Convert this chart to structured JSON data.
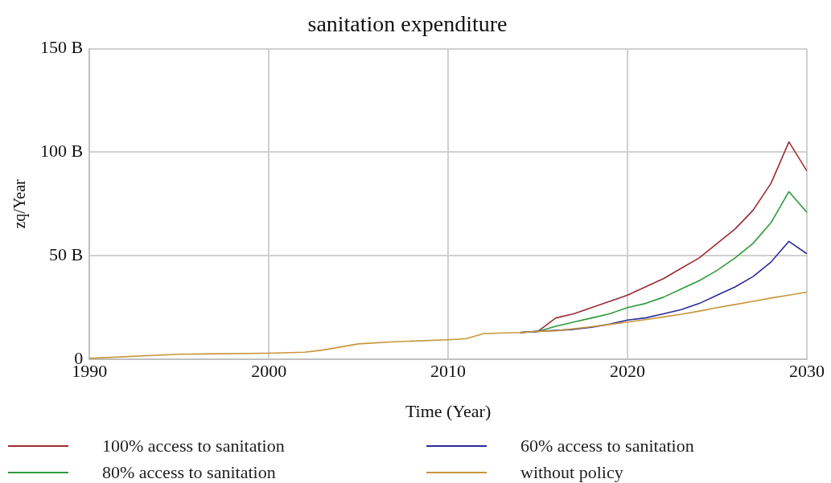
{
  "chart_data": {
    "type": "line",
    "title": "sanitation expenditure",
    "xlabel": "Time (Year)",
    "ylabel": "zq/Year",
    "x": [
      1990,
      1995,
      2000,
      2002,
      2003,
      2005,
      2007,
      2010,
      2011,
      2012,
      2014,
      2015,
      2016,
      2017,
      2018,
      2019,
      2020,
      2021,
      2022,
      2023,
      2024,
      2025,
      2026,
      2027,
      2028,
      2029,
      2030
    ],
    "series": [
      {
        "name": "100% access to sanitation",
        "color": "#9b2d30",
        "values": [
          null,
          null,
          null,
          null,
          null,
          null,
          null,
          null,
          null,
          null,
          13,
          13.5,
          20,
          22,
          25,
          28,
          31,
          35,
          39,
          44,
          49,
          56,
          63,
          72,
          85,
          105,
          91
        ]
      },
      {
        "name": "80% access to sanitation",
        "color": "#2e9b3a",
        "values": [
          null,
          null,
          null,
          null,
          null,
          null,
          null,
          null,
          null,
          null,
          13,
          13.5,
          16,
          18,
          20,
          22,
          25,
          27,
          30,
          34,
          38,
          43,
          49,
          56,
          66,
          81,
          71
        ]
      },
      {
        "name": "60% access to sanitation",
        "color": "#2b2b9b",
        "values": [
          null,
          null,
          null,
          null,
          null,
          null,
          null,
          null,
          null,
          null,
          13,
          13.5,
          14,
          14.5,
          15.5,
          17,
          19,
          20,
          22,
          24,
          27,
          31,
          35,
          40,
          47,
          57,
          51
        ]
      },
      {
        "name": "without policy",
        "color": "#c8963c",
        "values": [
          0.5,
          2.5,
          3,
          3.5,
          4.5,
          7.5,
          8.5,
          9.5,
          10,
          12.5,
          13,
          13.5,
          13.8,
          14.8,
          15.8,
          16.9,
          18,
          19.2,
          20.5,
          21.8,
          23.3,
          25,
          26.5,
          28,
          29.6,
          31,
          32.5
        ]
      }
    ],
    "xlim": [
      1990,
      2030
    ],
    "xticks": [
      1990,
      2000,
      2010,
      2020,
      2030
    ],
    "ylim": [
      0,
      150
    ],
    "yticks": [
      0,
      {
        "value": 50,
        "label": "50 B"
      },
      {
        "value": 100,
        "label": "100 B"
      },
      {
        "value": 150,
        "label": "150 B"
      }
    ],
    "grid": true,
    "legend": "bottom",
    "line_style": "solid",
    "marker": "none"
  }
}
